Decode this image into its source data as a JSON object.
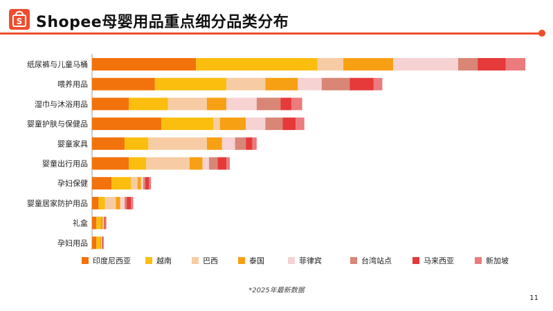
{
  "header": {
    "title": "Shopee母婴用品重点细分品类分布"
  },
  "footnote": "*2025年最新数据",
  "page_number": "11",
  "colors": {
    "brand": "#ee4d2d",
    "series": [
      "#f2720c",
      "#fbbe0e",
      "#f7cca4",
      "#f8a013",
      "#f6d2d3",
      "#d98676",
      "#e5393a",
      "#ec7b7e"
    ]
  },
  "chart_data": {
    "type": "bar",
    "orientation": "horizontal",
    "stacked": true,
    "title": "",
    "xlabel": "",
    "ylabel": "",
    "grid": false,
    "legend_position": "bottom",
    "categories": [
      "纸尿裤与儿童马桶",
      "喂养用品",
      "湿巾与沐浴用品",
      "婴童护肤与保健品",
      "婴童家具",
      "婴童出行用品",
      "孕妇保健",
      "婴童居家防护用品",
      "礼盒",
      "孕妇用品"
    ],
    "xlim": [
      0,
      100
    ],
    "series": [
      {
        "name": "印度尼西亚",
        "values": [
          24,
          14.5,
          8.5,
          16,
          7.5,
          8.5,
          4.5,
          1.5,
          1,
          1
        ]
      },
      {
        "name": "越南",
        "values": [
          28,
          16.5,
          9,
          12,
          5.5,
          4,
          4.5,
          1.5,
          1,
          0.8
        ]
      },
      {
        "name": "巴西",
        "values": [
          6,
          9,
          9,
          1.5,
          13.5,
          10,
          1.5,
          2.5,
          0,
          0
        ]
      },
      {
        "name": "泰国",
        "values": [
          11.5,
          7.5,
          4.5,
          6,
          3.5,
          3,
          0.8,
          1,
          0.5,
          0.3
        ]
      },
      {
        "name": "菲律宾",
        "values": [
          15,
          5.5,
          7,
          4.5,
          3,
          1.5,
          0.5,
          1,
          0.2,
          0.2
        ]
      },
      {
        "name": "台湾站点",
        "values": [
          4.5,
          6.5,
          5.5,
          4,
          2.5,
          2,
          0.5,
          0.5,
          0.2,
          0.1
        ]
      },
      {
        "name": "马来西亚",
        "values": [
          6.5,
          5.5,
          2.5,
          3,
          1.5,
          2,
          0.8,
          1,
          0.2,
          0.2
        ]
      },
      {
        "name": "新加坡",
        "values": [
          4.5,
          2,
          2.5,
          2,
          1,
          0.8,
          0.5,
          0.5,
          0.2,
          0.1
        ]
      }
    ]
  }
}
